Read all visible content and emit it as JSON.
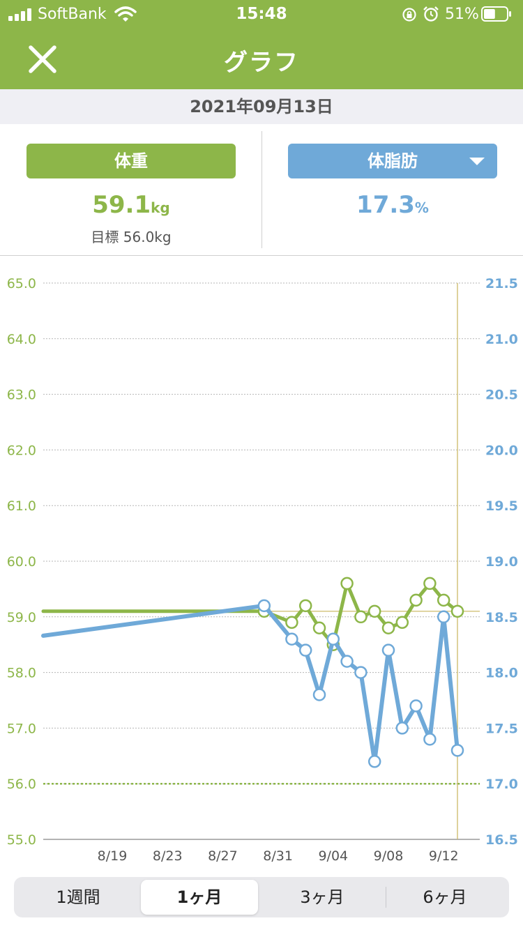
{
  "status": {
    "carrier": "SoftBank",
    "time": "15:48",
    "battery_pct": "51%",
    "battery_level": 0.51,
    "icons": [
      "signal-icon",
      "wifi-icon",
      "rotation-lock-icon",
      "alarm-icon",
      "battery-icon"
    ]
  },
  "nav": {
    "title": "グラフ",
    "close_icon": "close-icon"
  },
  "date": "2021年09月13日",
  "summary": {
    "weight": {
      "label": "体重",
      "value": "59.1",
      "unit": "kg",
      "goal": "目標 56.0kg"
    },
    "fat": {
      "label": "体脂肪",
      "value": "17.3",
      "unit": "%",
      "dropdown_icon": "chevron-down-icon"
    }
  },
  "colors": {
    "green": "#8db649",
    "blue": "#6fa9d8",
    "goal_line": "#c9b45a"
  },
  "chart_data": {
    "type": "line",
    "x_range_days": [
      "2021-08-14",
      "2021-09-13"
    ],
    "x_ticks": [
      "8/19",
      "8/23",
      "8/27",
      "8/31",
      "9/04",
      "9/08",
      "9/12"
    ],
    "y_left": {
      "ticks": [
        "65.0",
        "64.0",
        "63.0",
        "62.0",
        "61.0",
        "60.0",
        "59.0",
        "58.0",
        "57.0",
        "56.0",
        "55.0"
      ],
      "ylim": [
        55,
        65
      ]
    },
    "y_right": {
      "ticks": [
        "21.5",
        "21.0",
        "20.5",
        "20.0",
        "19.5",
        "19.0",
        "18.5",
        "18.0",
        "17.5",
        "17.0",
        "16.5"
      ],
      "ylim": [
        16.5,
        21.5
      ]
    },
    "goal_weight": 56.0,
    "current_weight_line": 59.1,
    "series": [
      {
        "axis": "left",
        "points": [
          {
            "x": "2021-08-14",
            "y": 59.1
          },
          {
            "x": "2021-08-30",
            "y": 59.1
          },
          {
            "x": "2021-09-01",
            "y": 58.9
          },
          {
            "x": "2021-09-02",
            "y": 59.2
          },
          {
            "x": "2021-09-03",
            "y": 58.8
          },
          {
            "x": "2021-09-04",
            "y": 58.5
          },
          {
            "x": "2021-09-05",
            "y": 59.6
          },
          {
            "x": "2021-09-06",
            "y": 59.0
          },
          {
            "x": "2021-09-07",
            "y": 59.1
          },
          {
            "x": "2021-09-08",
            "y": 58.8
          },
          {
            "x": "2021-09-09",
            "y": 58.9
          },
          {
            "x": "2021-09-10",
            "y": 59.3
          },
          {
            "x": "2021-09-11",
            "y": 59.6
          },
          {
            "x": "2021-09-12",
            "y": 59.3
          },
          {
            "x": "2021-09-13",
            "y": 59.1
          }
        ],
        "markers_from": "2021-08-30"
      },
      {
        "axis": "right",
        "points": [
          {
            "x": "2021-08-14",
            "y": 18.33
          },
          {
            "x": "2021-08-30",
            "y": 18.6
          },
          {
            "x": "2021-09-01",
            "y": 18.3
          },
          {
            "x": "2021-09-02",
            "y": 18.2
          },
          {
            "x": "2021-09-03",
            "y": 17.8
          },
          {
            "x": "2021-09-04",
            "y": 18.3
          },
          {
            "x": "2021-09-05",
            "y": 18.1
          },
          {
            "x": "2021-09-06",
            "y": 18.0
          },
          {
            "x": "2021-09-07",
            "y": 17.2
          },
          {
            "x": "2021-09-08",
            "y": 18.2
          },
          {
            "x": "2021-09-09",
            "y": 17.5
          },
          {
            "x": "2021-09-10",
            "y": 17.7
          },
          {
            "x": "2021-09-11",
            "y": 17.4
          },
          {
            "x": "2021-09-12",
            "y": 18.5
          },
          {
            "x": "2021-09-13",
            "y": 17.3
          }
        ],
        "markers_from": "2021-08-30"
      }
    ]
  },
  "segments": [
    "1週間",
    "1ヶ月",
    "3ヶ月",
    "6ヶ月"
  ],
  "active_segment": 1
}
